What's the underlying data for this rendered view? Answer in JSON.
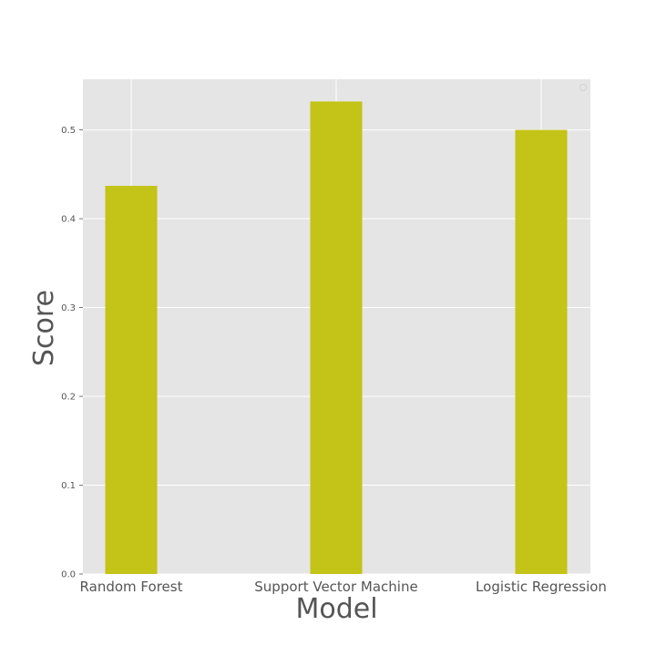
{
  "chart_data": {
    "type": "bar",
    "title": "",
    "xlabel": "Model",
    "ylabel": "Score",
    "categories": [
      "Random Forest",
      "Support Vector Machine",
      "Logistic Regression"
    ],
    "values": [
      0.437,
      0.532,
      0.5
    ],
    "ylim": [
      0,
      0.557
    ],
    "yticks": [
      "0.0",
      "0.1",
      "0.2",
      "0.3",
      "0.4",
      "0.5"
    ],
    "grid": true,
    "legend": "top-right",
    "colors": {
      "bar": "#c4c318",
      "plot_background": "#e5e5e5",
      "grid": "#ffffff",
      "text": "#555555"
    }
  }
}
